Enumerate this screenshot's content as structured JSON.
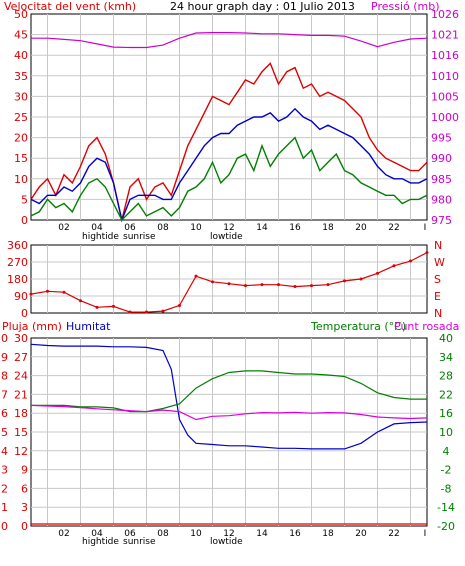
{
  "chart_data": [
    {
      "type": "line",
      "title": "24 hour graph day : 01 Julio 2013",
      "left_axis_title": "Velocitat del vent (kmh)",
      "right_axis_title": "Pressió (mb)",
      "left_ticks": [
        "0",
        "5",
        "10",
        "15",
        "20",
        "25",
        "30",
        "35",
        "40",
        "45",
        "50"
      ],
      "right_ticks": [
        "975",
        "980",
        "985",
        "990",
        "995",
        "1000",
        "1005",
        "1010",
        "1016",
        "1021",
        "1026"
      ],
      "ylim_left": [
        0,
        50
      ],
      "ylim_right": [
        975,
        1026
      ],
      "x_ticks": [
        "02",
        "04",
        "06",
        "08",
        "10",
        "12",
        "14",
        "16",
        "18",
        "20",
        "22",
        "I"
      ],
      "x_annotations": [
        "hightide",
        "sunrise",
        "lowtide"
      ],
      "grid": true,
      "series": [
        {
          "role": "gust",
          "color": "#dd0000",
          "x": [
            0,
            0.5,
            1,
            1.5,
            2,
            2.5,
            3,
            3.5,
            4,
            4.5,
            5,
            5.5,
            6,
            6.5,
            7,
            7.5,
            8,
            8.5,
            9,
            9.5,
            10,
            10.5,
            11,
            11.5,
            12,
            12.5,
            13,
            13.5,
            14,
            14.5,
            15,
            15.5,
            16,
            16.5,
            17,
            17.5,
            18,
            18.5,
            19,
            19.5,
            20,
            20.5,
            21,
            21.5,
            22,
            22.5,
            23,
            23.5,
            24
          ],
          "values": [
            5,
            8,
            10,
            6,
            11,
            9,
            13,
            18,
            20,
            16,
            9,
            0,
            8,
            10,
            5,
            8,
            9,
            6,
            12,
            18,
            22,
            26,
            30,
            29,
            28,
            31,
            34,
            33,
            36,
            38,
            33,
            36,
            37,
            32,
            33,
            30,
            31,
            30,
            29,
            27,
            25,
            20,
            17,
            15,
            14,
            13,
            12,
            12,
            14
          ]
        },
        {
          "role": "average",
          "color": "#0000cc",
          "x": [
            0,
            0.5,
            1,
            1.5,
            2,
            2.5,
            3,
            3.5,
            4,
            4.5,
            5,
            5.5,
            6,
            6.5,
            7,
            7.5,
            8,
            8.5,
            9,
            9.5,
            10,
            10.5,
            11,
            11.5,
            12,
            12.5,
            13,
            13.5,
            14,
            14.5,
            15,
            15.5,
            16,
            16.5,
            17,
            17.5,
            18,
            18.5,
            19,
            19.5,
            20,
            20.5,
            21,
            21.5,
            22,
            22.5,
            23,
            23.5,
            24
          ],
          "values": [
            5,
            4,
            6,
            6,
            8,
            7,
            9,
            13,
            15,
            14,
            9,
            0,
            5,
            6,
            6,
            6,
            5,
            5,
            9,
            12,
            15,
            18,
            20,
            21,
            21,
            23,
            24,
            25,
            25,
            26,
            24,
            25,
            27,
            25,
            24,
            22,
            23,
            22,
            21,
            20,
            18,
            16,
            13,
            11,
            10,
            10,
            9,
            9,
            10
          ]
        },
        {
          "role": "lull",
          "color": "#008000",
          "x": [
            0,
            0.5,
            1,
            1.5,
            2,
            2.5,
            3,
            3.5,
            4,
            4.5,
            5,
            5.5,
            6,
            6.5,
            7,
            7.5,
            8,
            8.5,
            9,
            9.5,
            10,
            10.5,
            11,
            11.5,
            12,
            12.5,
            13,
            13.5,
            14,
            14.5,
            15,
            15.5,
            16,
            16.5,
            17,
            17.5,
            18,
            18.5,
            19,
            19.5,
            20,
            20.5,
            21,
            21.5,
            22,
            22.5,
            23,
            23.5,
            24
          ],
          "values": [
            1,
            2,
            5,
            3,
            4,
            2,
            6,
            9,
            10,
            8,
            4,
            0,
            2,
            4,
            1,
            2,
            3,
            1,
            3,
            7,
            8,
            10,
            14,
            9,
            11,
            15,
            16,
            12,
            18,
            13,
            16,
            18,
            20,
            15,
            17,
            12,
            14,
            16,
            12,
            11,
            9,
            8,
            7,
            6,
            6,
            4,
            5,
            5,
            6
          ]
        },
        {
          "role": "pressure",
          "color": "#cc00cc",
          "axis": "right",
          "x": [
            0,
            1,
            2,
            3,
            4,
            5,
            6,
            7,
            8,
            9,
            10,
            11,
            12,
            13,
            14,
            15,
            16,
            17,
            18,
            19,
            20,
            21,
            22,
            23,
            24
          ],
          "values": [
            1020,
            1020,
            1019.7,
            1019.4,
            1018.6,
            1017.8,
            1017.7,
            1017.7,
            1018.3,
            1020,
            1021.3,
            1021.4,
            1021.4,
            1021.3,
            1021.1,
            1021.1,
            1020.9,
            1020.7,
            1020.7,
            1020.5,
            1019.3,
            1017.9,
            1019,
            1019.8,
            1020
          ]
        }
      ]
    },
    {
      "type": "scatter",
      "left_ticks": [
        "0",
        "90",
        "180",
        "270",
        "360"
      ],
      "right_ticks": [
        "N",
        "E",
        "S",
        "W",
        "N"
      ],
      "ylim": [
        0,
        360
      ],
      "series": [
        {
          "role": "wind_direction",
          "color": "#dd0000",
          "x": [
            0,
            1,
            2,
            3,
            4,
            5,
            6,
            7,
            8,
            9,
            10,
            11,
            12,
            13,
            14,
            15,
            16,
            17,
            18,
            19,
            20,
            21,
            22,
            23,
            24
          ],
          "values": [
            100,
            115,
            110,
            65,
            30,
            35,
            5,
            5,
            10,
            40,
            195,
            165,
            155,
            145,
            150,
            150,
            140,
            145,
            150,
            170,
            180,
            210,
            250,
            275,
            320
          ]
        }
      ]
    },
    {
      "type": "line",
      "left_axis_title": "Pluja (mm)",
      "second_axis_title": "Humitat",
      "right_axis_title": "Temperatura (°C)",
      "right_axis_title_2": "Punt rosada",
      "left_ticks": [
        "0",
        "1",
        "2",
        "3",
        "4",
        "5",
        "6",
        "7",
        "8",
        "9",
        "10"
      ],
      "second_ticks": [
        "0",
        "3",
        "6",
        "9",
        "12",
        "15",
        "18",
        "21",
        "24",
        "27",
        "30"
      ],
      "right_ticks": [
        "-20",
        "-14",
        "-8",
        "-2",
        "4",
        "10",
        "16",
        "22",
        "28",
        "34",
        "40"
      ],
      "ylim_left": [
        0,
        10
      ],
      "ylim_second": [
        0,
        30
      ],
      "ylim_right": [
        -20,
        40
      ],
      "x_ticks": [
        "02",
        "04",
        "06",
        "08",
        "10",
        "12",
        "14",
        "16",
        "18",
        "20",
        "22",
        "I"
      ],
      "x_annotations": [
        "hightide",
        "sunrise",
        "lowtide"
      ],
      "series": [
        {
          "role": "humidity",
          "color": "#0000cc",
          "axis": "second",
          "x": [
            0,
            1,
            2,
            3,
            4,
            5,
            6,
            7,
            8,
            8.5,
            9,
            9.5,
            10,
            11,
            12,
            13,
            14,
            15,
            16,
            17,
            18,
            19,
            20,
            21,
            22,
            23,
            24
          ],
          "values": [
            29,
            28.8,
            28.7,
            28.7,
            28.7,
            28.6,
            28.6,
            28.5,
            28,
            25,
            17,
            14.5,
            13.2,
            13,
            12.8,
            12.8,
            12.6,
            12.4,
            12.4,
            12.3,
            12.3,
            12.3,
            13.2,
            15,
            16.3,
            16.5,
            16.6
          ]
        },
        {
          "role": "temperature",
          "color": "#008000",
          "axis": "right",
          "x": [
            0,
            1,
            2,
            3,
            4,
            5,
            6,
            7,
            8,
            9,
            10,
            11,
            12,
            13,
            14,
            15,
            16,
            17,
            18,
            19,
            20,
            21,
            22,
            23,
            24
          ],
          "values": [
            18.5,
            18.5,
            18.5,
            18,
            18,
            17.7,
            16.5,
            16.5,
            17.5,
            19,
            24,
            27,
            29,
            29.5,
            29.5,
            29,
            28.5,
            28.5,
            28.2,
            27.7,
            25.5,
            22.5,
            21,
            20.5,
            20.5
          ]
        },
        {
          "role": "dew_point",
          "color": "#dd00dd",
          "axis": "right",
          "x": [
            0,
            1,
            2,
            3,
            4,
            5,
            6,
            7,
            8,
            9,
            10,
            11,
            12,
            13,
            14,
            15,
            16,
            17,
            18,
            19,
            20,
            21,
            22,
            23,
            24
          ],
          "values": [
            18.5,
            18.3,
            18.1,
            17.8,
            17.4,
            17.1,
            16.8,
            16.5,
            17,
            16.5,
            14,
            15,
            15.2,
            15.8,
            16.2,
            16.1,
            16.3,
            16,
            16.2,
            16.1,
            15.6,
            14.8,
            14.5,
            14.3,
            14.5
          ]
        },
        {
          "role": "rain",
          "color": "#dd0000",
          "axis": "left",
          "x": [
            0,
            24
          ],
          "values": [
            0,
            0
          ]
        }
      ]
    }
  ],
  "colors": {
    "frame": "#000000",
    "grid": "#c8c8c8",
    "red": "#dd0000",
    "blue": "#0000cc",
    "green": "#008000",
    "magenta": "#cc00cc",
    "pink": "#dd00dd"
  }
}
